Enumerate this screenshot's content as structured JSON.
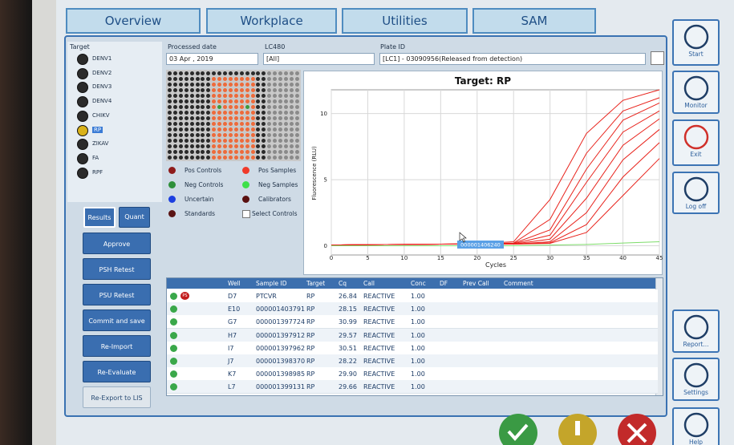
{
  "tabs": [
    "Overview",
    "Workplace",
    "Utilities",
    "SAM"
  ],
  "side_buttons": [
    "Start",
    "Monitor",
    "Exit",
    "Log off",
    "Report...",
    "Settings",
    "Help"
  ],
  "target": {
    "label": "Target",
    "items": [
      "DENV1",
      "DENV2",
      "DENV3",
      "DENV4",
      "CHIKV",
      "RP",
      "ZIKAV",
      "FA",
      "RPF"
    ],
    "selected": "RP"
  },
  "filters": {
    "processed_date_label": "Processed date",
    "processed_date": "03 Apr , 2019",
    "lc480_label": "LC480",
    "lc480": "[All]",
    "plate_id_label": "Plate ID",
    "plate_id": "[LC1] - 03090956(Released from detection)"
  },
  "legend": [
    {
      "label": "Pos Controls",
      "color": "#8e1b1b"
    },
    {
      "label": "Pos Samples",
      "color": "#f03a2a"
    },
    {
      "label": "Neg Controls",
      "color": "#2e8f3a"
    },
    {
      "label": "Neg Samples",
      "color": "#3ee04a"
    },
    {
      "label": "Uncertain",
      "color": "#1c3fe0"
    },
    {
      "label": "Calibrators",
      "color": "#5a1010"
    },
    {
      "label": "Standards",
      "color": "#5a1414"
    }
  ],
  "select_controls": "Select Controls",
  "view_buttons": [
    "Results",
    "Quant"
  ],
  "actions": [
    "Approve",
    "PSH Retest",
    "PSU Retest",
    "Commit and save",
    "Re-Import",
    "Re-Evaluate",
    "Re-Export to LIS"
  ],
  "table": {
    "columns": [
      "Well",
      "Sample ID",
      "Target",
      "Cq",
      "Call",
      "Conc",
      "DF",
      "Prev Call",
      "Comment"
    ],
    "rows": [
      {
        "flag": "PS",
        "cells": [
          "D7",
          "PTCVR",
          "RP",
          "26.84",
          "REACTIVE",
          "1.00"
        ]
      },
      {
        "cells": [
          "E10",
          "000001403791",
          "RP",
          "28.15",
          "REACTIVE",
          "1.00"
        ]
      },
      {
        "cells": [
          "G7",
          "000001397724",
          "RP",
          "30.99",
          "REACTIVE",
          "1.00"
        ]
      },
      {
        "cells": [
          "H7",
          "000001397912",
          "RP",
          "29.57",
          "REACTIVE",
          "1.00"
        ]
      },
      {
        "cells": [
          "I7",
          "000001397962",
          "RP",
          "30.51",
          "REACTIVE",
          "1.00"
        ]
      },
      {
        "cells": [
          "J7",
          "000001398370",
          "RP",
          "28.22",
          "REACTIVE",
          "1.00"
        ]
      },
      {
        "cells": [
          "K7",
          "000001398985",
          "RP",
          "29.90",
          "REACTIVE",
          "1.00"
        ]
      },
      {
        "cells": [
          "L7",
          "000001399131",
          "RP",
          "29.66",
          "REACTIVE",
          "1.00"
        ]
      }
    ]
  },
  "chart_data": {
    "type": "line",
    "title": "Target: RP",
    "x_label": "Cycles",
    "y_label": "Fluorescence (RLU)",
    "annotation": "000001406240",
    "x": [
      0,
      5,
      10,
      15,
      20,
      25,
      30,
      35,
      40,
      45
    ],
    "series": [
      {
        "color": "#e8231c",
        "values": [
          0.05,
          0.08,
          0.1,
          0.12,
          0.15,
          0.3,
          3.5,
          8.5,
          11,
          11.8
        ]
      },
      {
        "color": "#e8231c",
        "values": [
          0.05,
          0.08,
          0.1,
          0.12,
          0.14,
          0.2,
          2.0,
          7.0,
          10.2,
          11.2
        ]
      },
      {
        "color": "#e8231c",
        "values": [
          0.05,
          0.08,
          0.1,
          0.12,
          0.14,
          0.18,
          1.2,
          5.8,
          9.5,
          10.8
        ]
      },
      {
        "color": "#e8231c",
        "values": [
          0.05,
          0.08,
          0.1,
          0.12,
          0.14,
          0.15,
          0.8,
          4.8,
          8.6,
          10.2
        ]
      },
      {
        "color": "#e8231c",
        "values": [
          0.05,
          0.08,
          0.1,
          0.12,
          0.13,
          0.13,
          0.5,
          3.6,
          7.6,
          9.6
        ]
      },
      {
        "color": "#e8231c",
        "values": [
          0.05,
          0.08,
          0.1,
          0.12,
          0.12,
          0.12,
          0.3,
          2.5,
          6.5,
          8.8
        ]
      },
      {
        "color": "#e8231c",
        "values": [
          0.05,
          0.08,
          0.1,
          0.12,
          0.12,
          0.12,
          0.22,
          1.6,
          5.2,
          7.8
        ]
      },
      {
        "color": "#e8231c",
        "values": [
          0.05,
          0.08,
          0.1,
          0.12,
          0.12,
          0.12,
          0.18,
          1.0,
          3.8,
          6.6
        ]
      },
      {
        "color": "#7ddc6a",
        "values": [
          0,
          0,
          0,
          0,
          0,
          0,
          0.05,
          0.1,
          0.2,
          0.3
        ]
      }
    ],
    "xlim": [
      0,
      45
    ],
    "ylim": [
      -0.7,
      11.8
    ],
    "xticks": [
      0,
      5,
      10,
      15,
      20,
      25,
      30,
      35,
      40,
      45
    ],
    "yticks": [
      0,
      5,
      10
    ],
    "grid": true
  }
}
